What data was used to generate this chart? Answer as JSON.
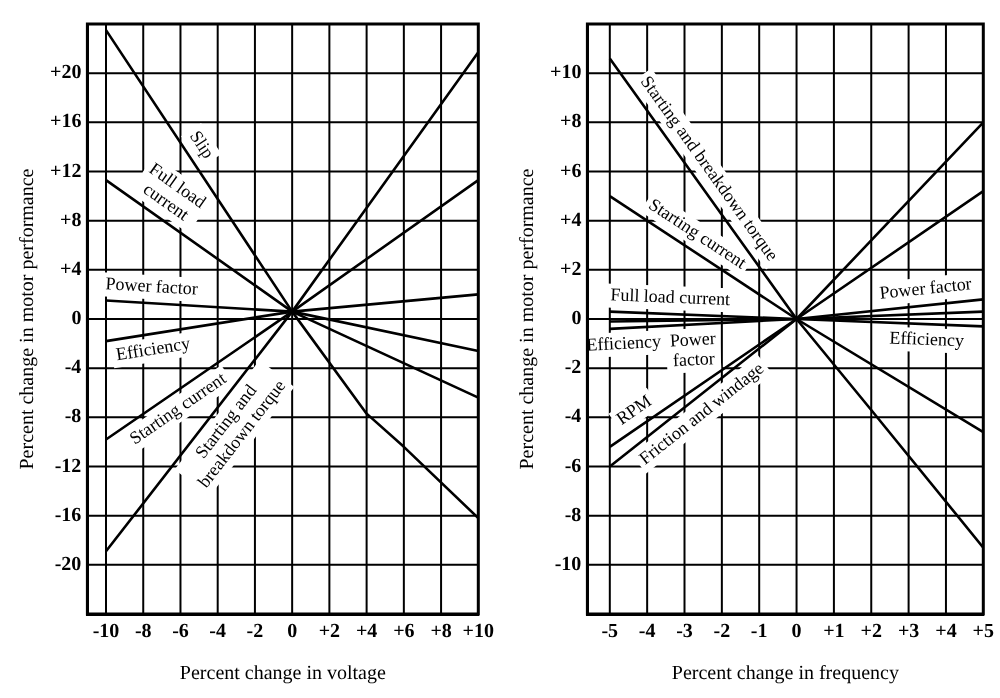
{
  "chart_data": [
    {
      "type": "line",
      "xlabel": "Percent change in voltage",
      "ylabel": "Percent change in motor performance",
      "xlim": [
        -11,
        10
      ],
      "ylim": [
        -24,
        24
      ],
      "xticks": [
        -10,
        -8,
        -6,
        -4,
        -2,
        0,
        {
          "value": 2,
          "label": "+2"
        },
        {
          "value": 4,
          "label": "+4"
        },
        {
          "value": 6,
          "label": "+6"
        },
        {
          "value": 8,
          "label": "+8"
        },
        {
          "value": 10,
          "label": "+10"
        }
      ],
      "yticks": [
        -20,
        -16,
        -12,
        -8,
        -4,
        0,
        {
          "value": 4,
          "label": "+4"
        },
        {
          "value": 8,
          "label": "+8"
        },
        {
          "value": 12,
          "label": "+12"
        },
        {
          "value": 16,
          "label": "+16"
        },
        {
          "value": 20,
          "label": "+20"
        }
      ],
      "grid": true,
      "legend": false,
      "marker": "none",
      "line_style": "solid",
      "series": [
        {
          "color": "#000000",
          "x": [
            -10,
            0,
            4,
            6,
            10
          ],
          "values": [
            23.5,
            0.6,
            -7.7,
            -10.4,
            -16.2
          ]
        },
        {
          "color": "#000000",
          "x": [
            -10,
            0,
            10
          ],
          "values": [
            11.3,
            0.6,
            -6.4
          ]
        },
        {
          "color": "#000000",
          "x": [
            -10,
            0,
            10
          ],
          "values": [
            1.5,
            0.6,
            -2.6
          ]
        },
        {
          "color": "#000000",
          "x": [
            -10,
            0,
            10
          ],
          "values": [
            -1.8,
            0.6,
            2
          ]
        },
        {
          "color": "#000000",
          "x": [
            -10,
            0,
            10
          ],
          "values": [
            -9.8,
            0.6,
            11.3
          ]
        },
        {
          "color": "#000000",
          "x": [
            -10,
            0,
            10
          ],
          "values": [
            -18.9,
            0.6,
            21.7
          ]
        }
      ],
      "annotations": [
        "Slip",
        "Full load current",
        "Power factor",
        "Efficiency",
        "Starting current",
        "Starting and breakdown torque"
      ]
    },
    {
      "type": "line",
      "xlabel": "Percent change in frequency",
      "ylabel": "Percent change in motor performance",
      "xlim": [
        -5.6,
        5
      ],
      "ylim": [
        -12,
        12
      ],
      "xticks": [
        -5,
        -4,
        -3,
        -2,
        -1,
        0,
        {
          "value": 1,
          "label": "+1"
        },
        {
          "value": 2,
          "label": "+2"
        },
        {
          "value": 3,
          "label": "+3"
        },
        {
          "value": 4,
          "label": "+4"
        },
        {
          "value": 5,
          "label": "+5"
        }
      ],
      "yticks": [
        -10,
        -8,
        -6,
        -4,
        -2,
        0,
        {
          "value": 2,
          "label": "+2"
        },
        {
          "value": 4,
          "label": "+4"
        },
        {
          "value": 6,
          "label": "+6"
        },
        {
          "value": 8,
          "label": "+8"
        },
        {
          "value": 10,
          "label": "+10"
        }
      ],
      "grid": true,
      "legend": false,
      "marker": "none",
      "line_style": "solid",
      "series": [
        {
          "color": "#000000",
          "x": [
            -5,
            0,
            2,
            5
          ],
          "values": [
            10.6,
            0,
            -3.7,
            -9.3
          ]
        },
        {
          "color": "#000000",
          "x": [
            -5,
            0,
            5
          ],
          "values": [
            5,
            0,
            -4.6
          ]
        },
        {
          "color": "#000000",
          "x": [
            -5,
            0,
            5
          ],
          "values": [
            0.3,
            0,
            -0.3
          ]
        },
        {
          "color": "#000000",
          "x": [
            -5,
            0,
            5
          ],
          "values": [
            -0.1,
            0,
            0.3
          ]
        },
        {
          "color": "#000000",
          "x": [
            -5,
            0,
            5
          ],
          "values": [
            -0.4,
            0,
            0.8
          ]
        },
        {
          "color": "#000000",
          "x": [
            -5,
            0,
            5
          ],
          "values": [
            -5.2,
            0,
            5.2
          ]
        },
        {
          "color": "#000000",
          "x": [
            -5,
            0,
            5
          ],
          "values": [
            -6,
            0,
            8
          ]
        }
      ],
      "annotations": [
        "Starting and breakdown torque",
        "Starting current",
        "Full load current",
        "Efficiency",
        "Power factor",
        "RPM",
        "Friction and windage",
        "Power factor",
        "Efficiency"
      ]
    }
  ]
}
